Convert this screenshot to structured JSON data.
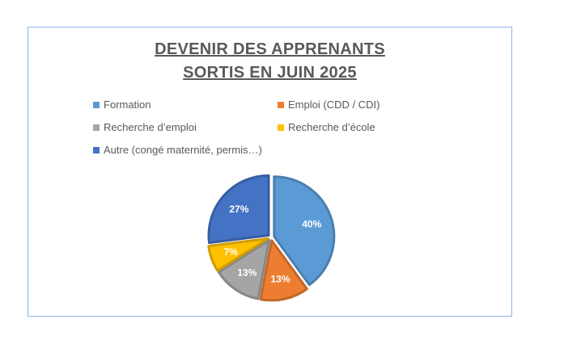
{
  "chart_data": {
    "type": "pie",
    "title": "DEVENIR DES APPRENANTS",
    "subtitle": "SORTIS EN JUIN 2025",
    "categories": [
      "Formation",
      "Emploi (CDD / CDI)",
      "Recherche d’emploi",
      "Recherche d’école",
      "Autre (congé maternité, permis…)"
    ],
    "values": [
      40,
      13,
      13,
      7,
      27
    ],
    "labels": [
      "40%",
      "13%",
      "13%",
      "7%",
      "27%"
    ],
    "colors": [
      "#5b9bd5",
      "#ed7d31",
      "#a5a5a5",
      "#ffc000",
      "#4472c4"
    ],
    "legend_position": "top",
    "start_angle_deg": 0,
    "direction": "clockwise",
    "exploded": true
  }
}
